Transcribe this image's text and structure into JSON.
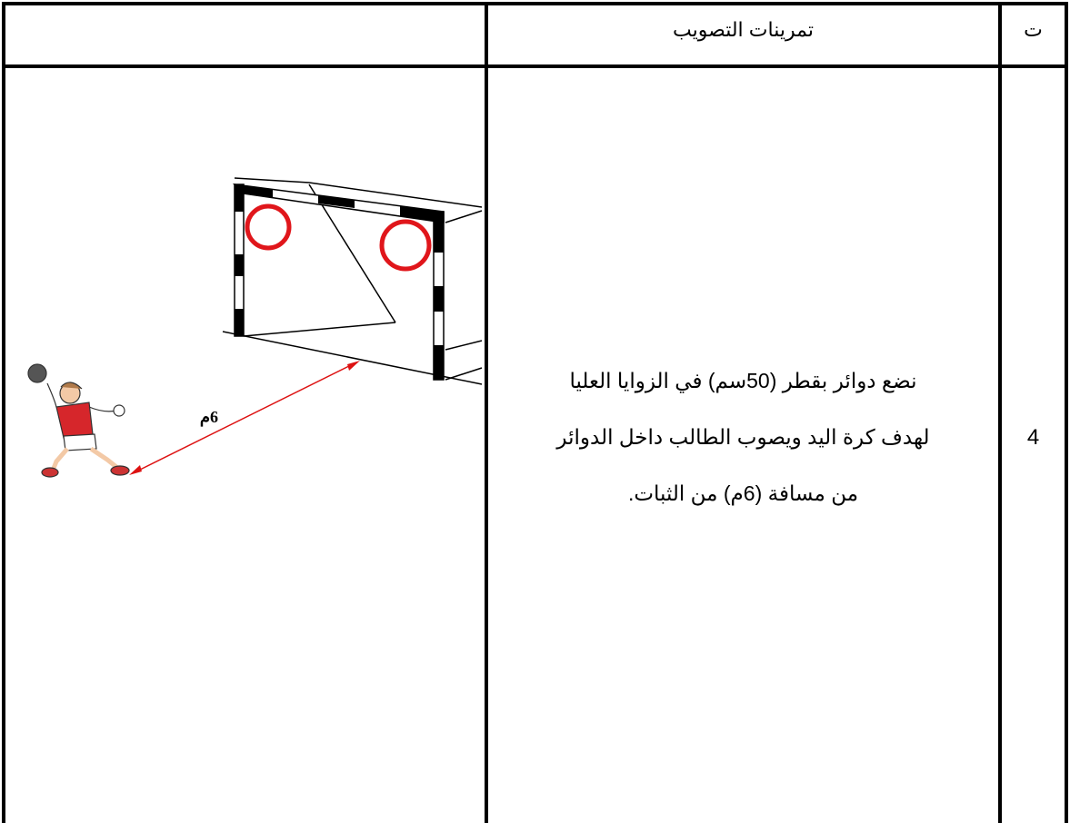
{
  "table": {
    "header": {
      "number_label": "ت",
      "exercises_label": "تمرينات التصويب"
    },
    "rows": [
      {
        "number": "4",
        "description": [
          "نضع دوائر بقطر (50سم) في الزوايا العليا",
          "لهدف كرة اليد ويصوب الطالب داخل الدوائر",
          "من مسافة (6م) من الثبات."
        ],
        "distance_label": "6م"
      }
    ]
  }
}
